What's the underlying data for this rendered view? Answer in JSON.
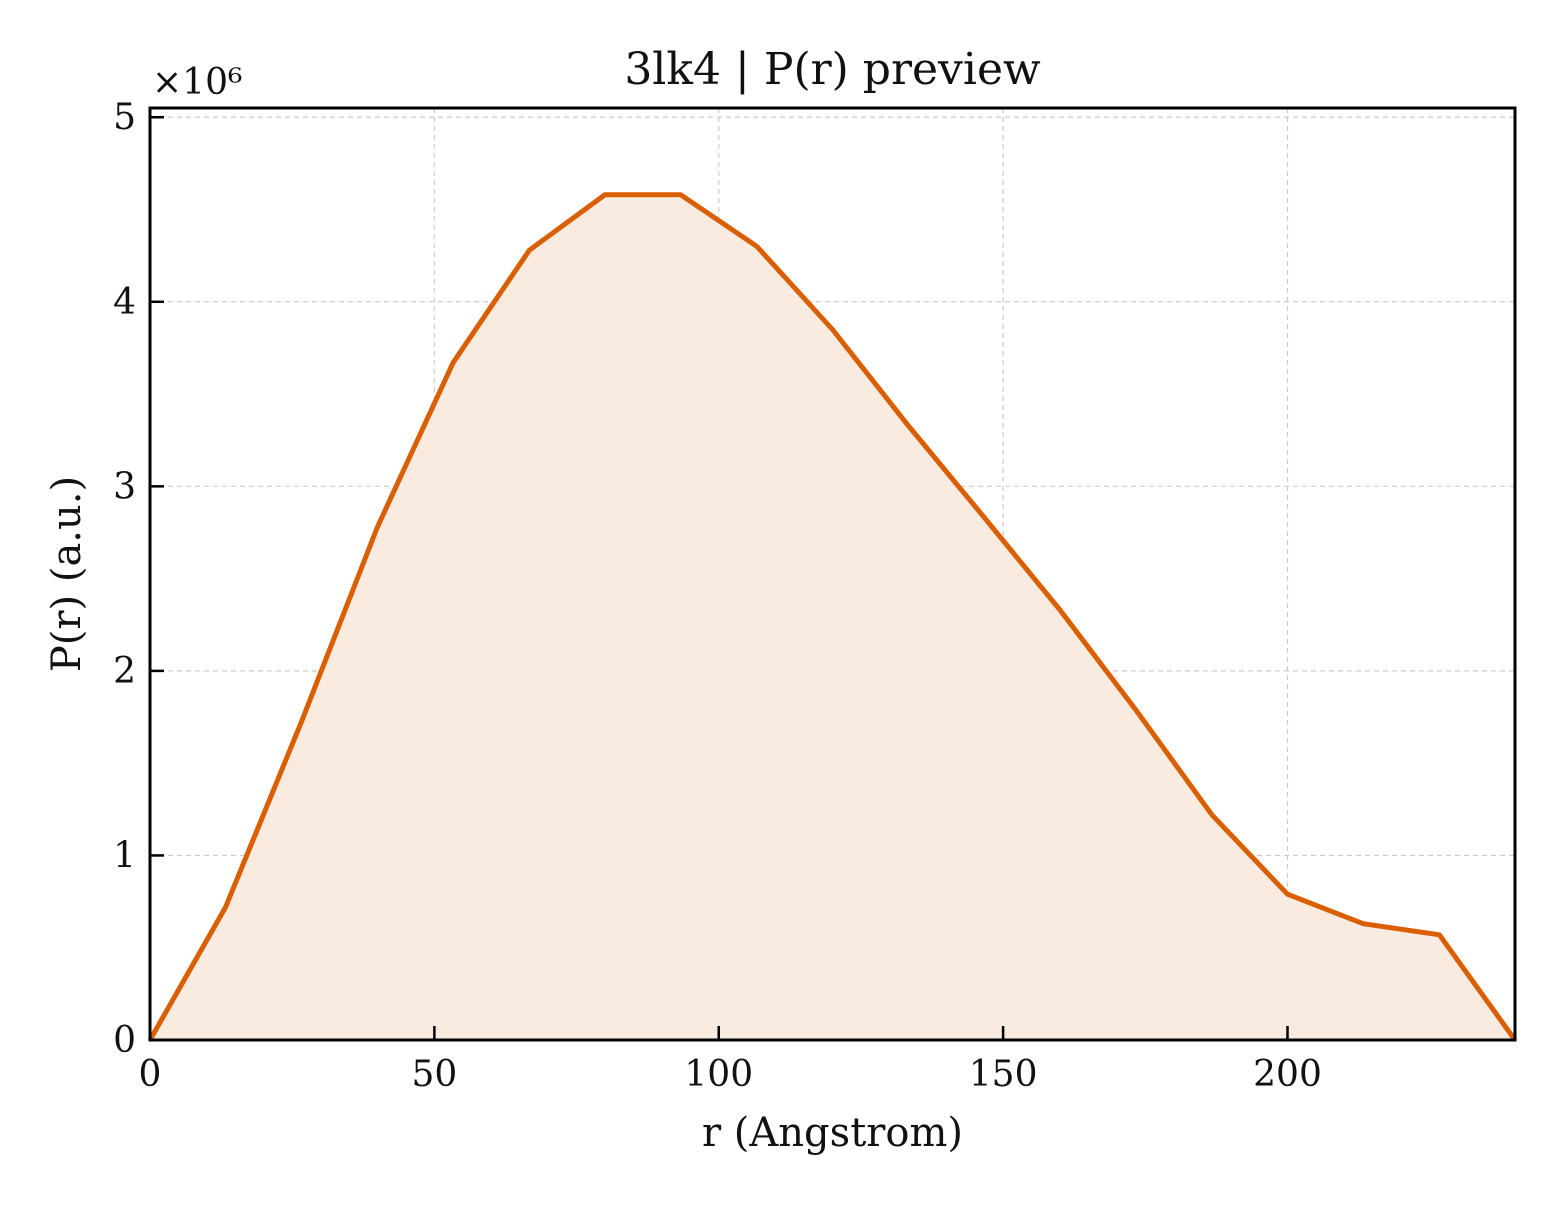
{
  "chart_data": {
    "type": "area",
    "title": "3lk4 | P(r) preview",
    "xlabel": "r (Angstrom)",
    "ylabel": "P(r) (a.u.)",
    "y_multiplier_label": "×10⁶",
    "y_scale": 1000000,
    "xlim": [
      0,
      240
    ],
    "ylim": [
      0,
      5.05
    ],
    "x_ticks": [
      0,
      50,
      100,
      150,
      200
    ],
    "y_ticks": [
      0,
      1,
      2,
      3,
      4,
      5
    ],
    "grid": true,
    "legend": "none",
    "colors": {
      "line": "#d95f02",
      "fill": "#f9ebe0",
      "grid": "#cccccc",
      "axis": "#000000"
    },
    "series": [
      {
        "x": [
          0,
          13.3,
          26.7,
          40.0,
          53.3,
          66.7,
          80.0,
          93.3,
          106.7,
          120.0,
          133.3,
          146.7,
          160.0,
          173.3,
          186.7,
          200.0,
          213.3,
          226.7,
          240.0
        ],
        "y": [
          0,
          0.72,
          1.73,
          2.78,
          3.67,
          4.28,
          4.58,
          4.58,
          4.3,
          3.85,
          3.33,
          2.83,
          2.33,
          1.79,
          1.22,
          0.79,
          0.63,
          0.57,
          0
        ]
      }
    ]
  }
}
